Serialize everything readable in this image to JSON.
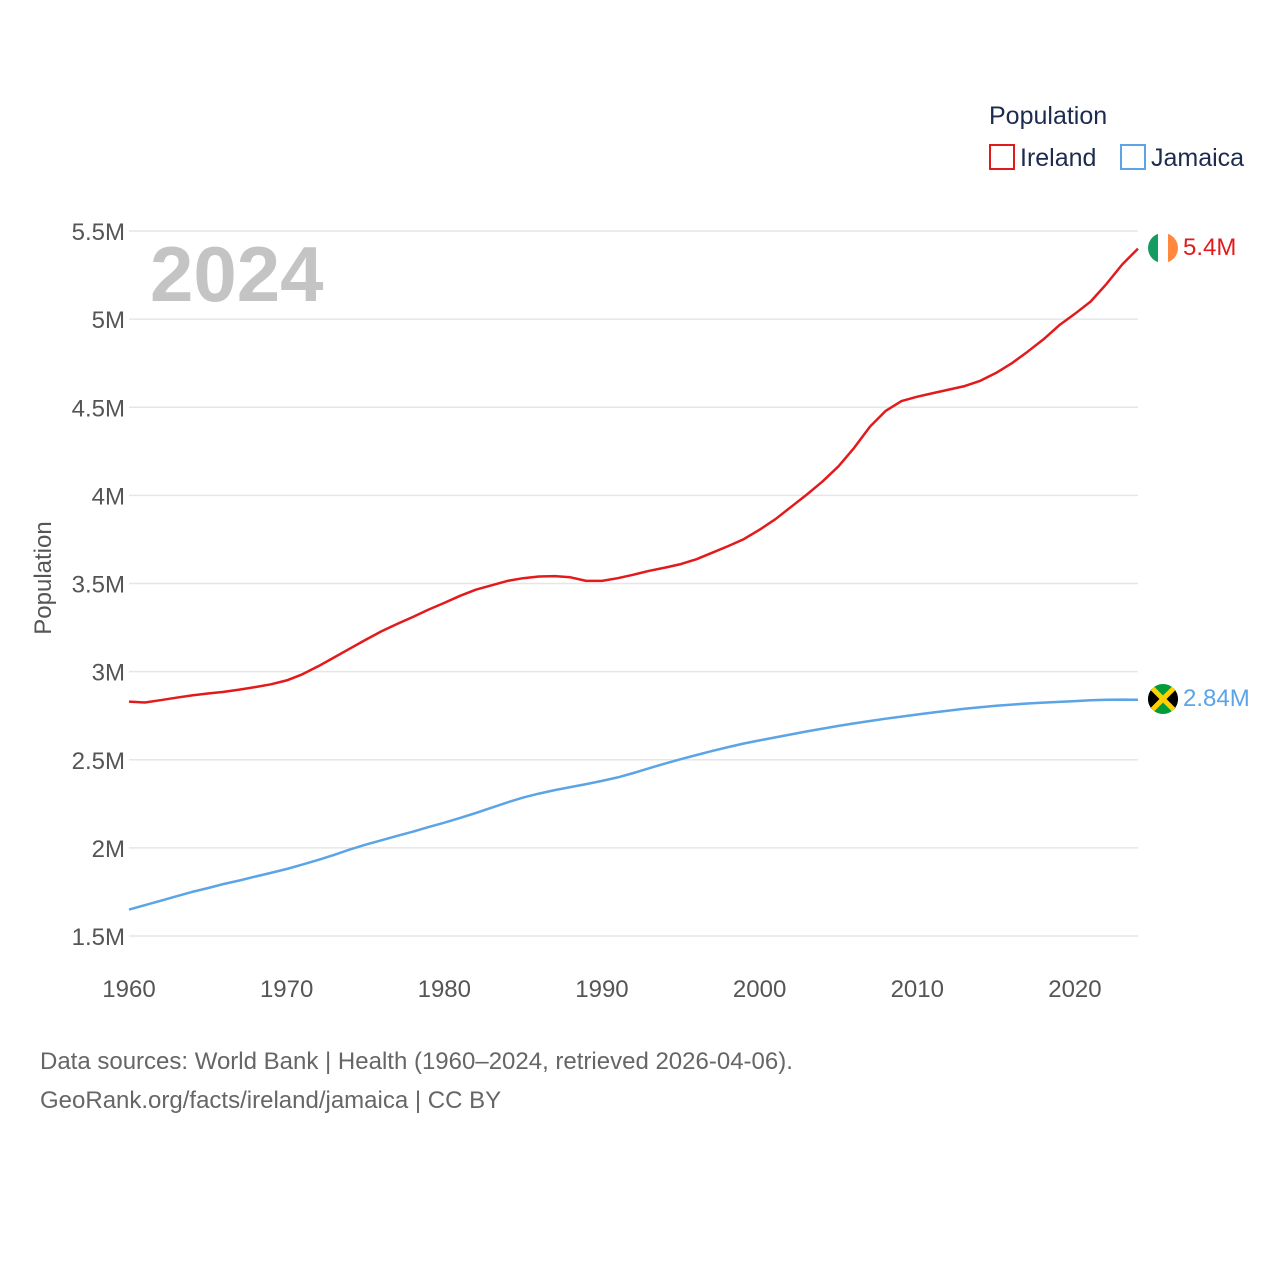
{
  "chart_data": {
    "type": "line",
    "legend_title": "Population",
    "ylabel": "Population",
    "year_label": "2024",
    "xlim": [
      1960,
      2024
    ],
    "ylim": [
      1500000,
      5500000
    ],
    "x_ticks": [
      1960,
      1970,
      1980,
      1990,
      2000,
      2010,
      2020
    ],
    "x_tick_labels": [
      "1960",
      "1970",
      "1980",
      "1990",
      "2000",
      "2010",
      "2020"
    ],
    "y_ticks": [
      1500000,
      2000000,
      2500000,
      3000000,
      3500000,
      4000000,
      4500000,
      5000000,
      5500000
    ],
    "y_tick_labels": [
      "1.5M",
      "2M",
      "2.5M",
      "3M",
      "3.5M",
      "4M",
      "4.5M",
      "5M",
      "5.5M"
    ],
    "grid": true,
    "legend_position": "top-right",
    "series": [
      {
        "name": "Ireland",
        "color": "#e31a1c",
        "end_label": "5.4M",
        "flag_icon": "ireland-flag-icon",
        "points": [
          [
            1960,
            2830000
          ],
          [
            1961,
            2825000
          ],
          [
            1962,
            2838000
          ],
          [
            1963,
            2852000
          ],
          [
            1964,
            2865000
          ],
          [
            1965,
            2876000
          ],
          [
            1966,
            2885000
          ],
          [
            1967,
            2898000
          ],
          [
            1968,
            2912000
          ],
          [
            1969,
            2928000
          ],
          [
            1970,
            2950000
          ],
          [
            1971,
            2985000
          ],
          [
            1972,
            3030000
          ],
          [
            1973,
            3080000
          ],
          [
            1974,
            3130000
          ],
          [
            1975,
            3180000
          ],
          [
            1976,
            3228000
          ],
          [
            1977,
            3270000
          ],
          [
            1978,
            3310000
          ],
          [
            1979,
            3352000
          ],
          [
            1980,
            3390000
          ],
          [
            1981,
            3430000
          ],
          [
            1982,
            3465000
          ],
          [
            1983,
            3490000
          ],
          [
            1984,
            3515000
          ],
          [
            1985,
            3530000
          ],
          [
            1986,
            3540000
          ],
          [
            1987,
            3542000
          ],
          [
            1988,
            3535000
          ],
          [
            1989,
            3515000
          ],
          [
            1990,
            3515000
          ],
          [
            1991,
            3530000
          ],
          [
            1992,
            3550000
          ],
          [
            1993,
            3572000
          ],
          [
            1994,
            3590000
          ],
          [
            1995,
            3610000
          ],
          [
            1996,
            3638000
          ],
          [
            1997,
            3675000
          ],
          [
            1998,
            3712000
          ],
          [
            1999,
            3752000
          ],
          [
            2000,
            3805000
          ],
          [
            2001,
            3865000
          ],
          [
            2002,
            3935000
          ],
          [
            2003,
            4005000
          ],
          [
            2004,
            4080000
          ],
          [
            2005,
            4165000
          ],
          [
            2006,
            4270000
          ],
          [
            2007,
            4390000
          ],
          [
            2008,
            4480000
          ],
          [
            2009,
            4535000
          ],
          [
            2010,
            4560000
          ],
          [
            2011,
            4580000
          ],
          [
            2012,
            4600000
          ],
          [
            2013,
            4620000
          ],
          [
            2014,
            4650000
          ],
          [
            2015,
            4695000
          ],
          [
            2016,
            4750000
          ],
          [
            2017,
            4815000
          ],
          [
            2018,
            4885000
          ],
          [
            2019,
            4965000
          ],
          [
            2020,
            5030000
          ],
          [
            2021,
            5100000
          ],
          [
            2022,
            5200000
          ],
          [
            2023,
            5310000
          ],
          [
            2024,
            5400000
          ]
        ]
      },
      {
        "name": "Jamaica",
        "color": "#5ba4e5",
        "end_label": "2.84M",
        "flag_icon": "jamaica-flag-icon",
        "points": [
          [
            1960,
            1650000
          ],
          [
            1961,
            1675000
          ],
          [
            1962,
            1700000
          ],
          [
            1963,
            1725000
          ],
          [
            1964,
            1750000
          ],
          [
            1965,
            1772000
          ],
          [
            1966,
            1795000
          ],
          [
            1967,
            1815000
          ],
          [
            1968,
            1837000
          ],
          [
            1969,
            1858000
          ],
          [
            1970,
            1880000
          ],
          [
            1971,
            1905000
          ],
          [
            1972,
            1932000
          ],
          [
            1973,
            1960000
          ],
          [
            1974,
            1990000
          ],
          [
            1975,
            2018000
          ],
          [
            1976,
            2043000
          ],
          [
            1977,
            2068000
          ],
          [
            1978,
            2092000
          ],
          [
            1979,
            2118000
          ],
          [
            1980,
            2143000
          ],
          [
            1981,
            2170000
          ],
          [
            1982,
            2198000
          ],
          [
            1983,
            2228000
          ],
          [
            1984,
            2258000
          ],
          [
            1985,
            2285000
          ],
          [
            1986,
            2308000
          ],
          [
            1987,
            2328000
          ],
          [
            1988,
            2345000
          ],
          [
            1989,
            2362000
          ],
          [
            1990,
            2380000
          ],
          [
            1991,
            2400000
          ],
          [
            1992,
            2425000
          ],
          [
            1993,
            2452000
          ],
          [
            1994,
            2478000
          ],
          [
            1995,
            2503000
          ],
          [
            1996,
            2527000
          ],
          [
            1997,
            2550000
          ],
          [
            1998,
            2572000
          ],
          [
            1999,
            2592000
          ],
          [
            2000,
            2610000
          ],
          [
            2001,
            2627000
          ],
          [
            2002,
            2644000
          ],
          [
            2003,
            2661000
          ],
          [
            2004,
            2677000
          ],
          [
            2005,
            2692000
          ],
          [
            2006,
            2706000
          ],
          [
            2007,
            2720000
          ],
          [
            2008,
            2733000
          ],
          [
            2009,
            2745000
          ],
          [
            2010,
            2757000
          ],
          [
            2011,
            2768000
          ],
          [
            2012,
            2779000
          ],
          [
            2013,
            2789000
          ],
          [
            2014,
            2798000
          ],
          [
            2015,
            2806000
          ],
          [
            2016,
            2813000
          ],
          [
            2017,
            2819000
          ],
          [
            2018,
            2824000
          ],
          [
            2019,
            2828000
          ],
          [
            2020,
            2833000
          ],
          [
            2021,
            2838000
          ],
          [
            2022,
            2840000
          ],
          [
            2023,
            2841000
          ],
          [
            2024,
            2840000
          ]
        ]
      }
    ]
  },
  "footer": {
    "source_line": "Data sources: World Bank | Health (1960–2024, retrieved 2026-04-06).",
    "attribution_line": "GeoRank.org/facts/ireland/jamaica | CC BY"
  }
}
